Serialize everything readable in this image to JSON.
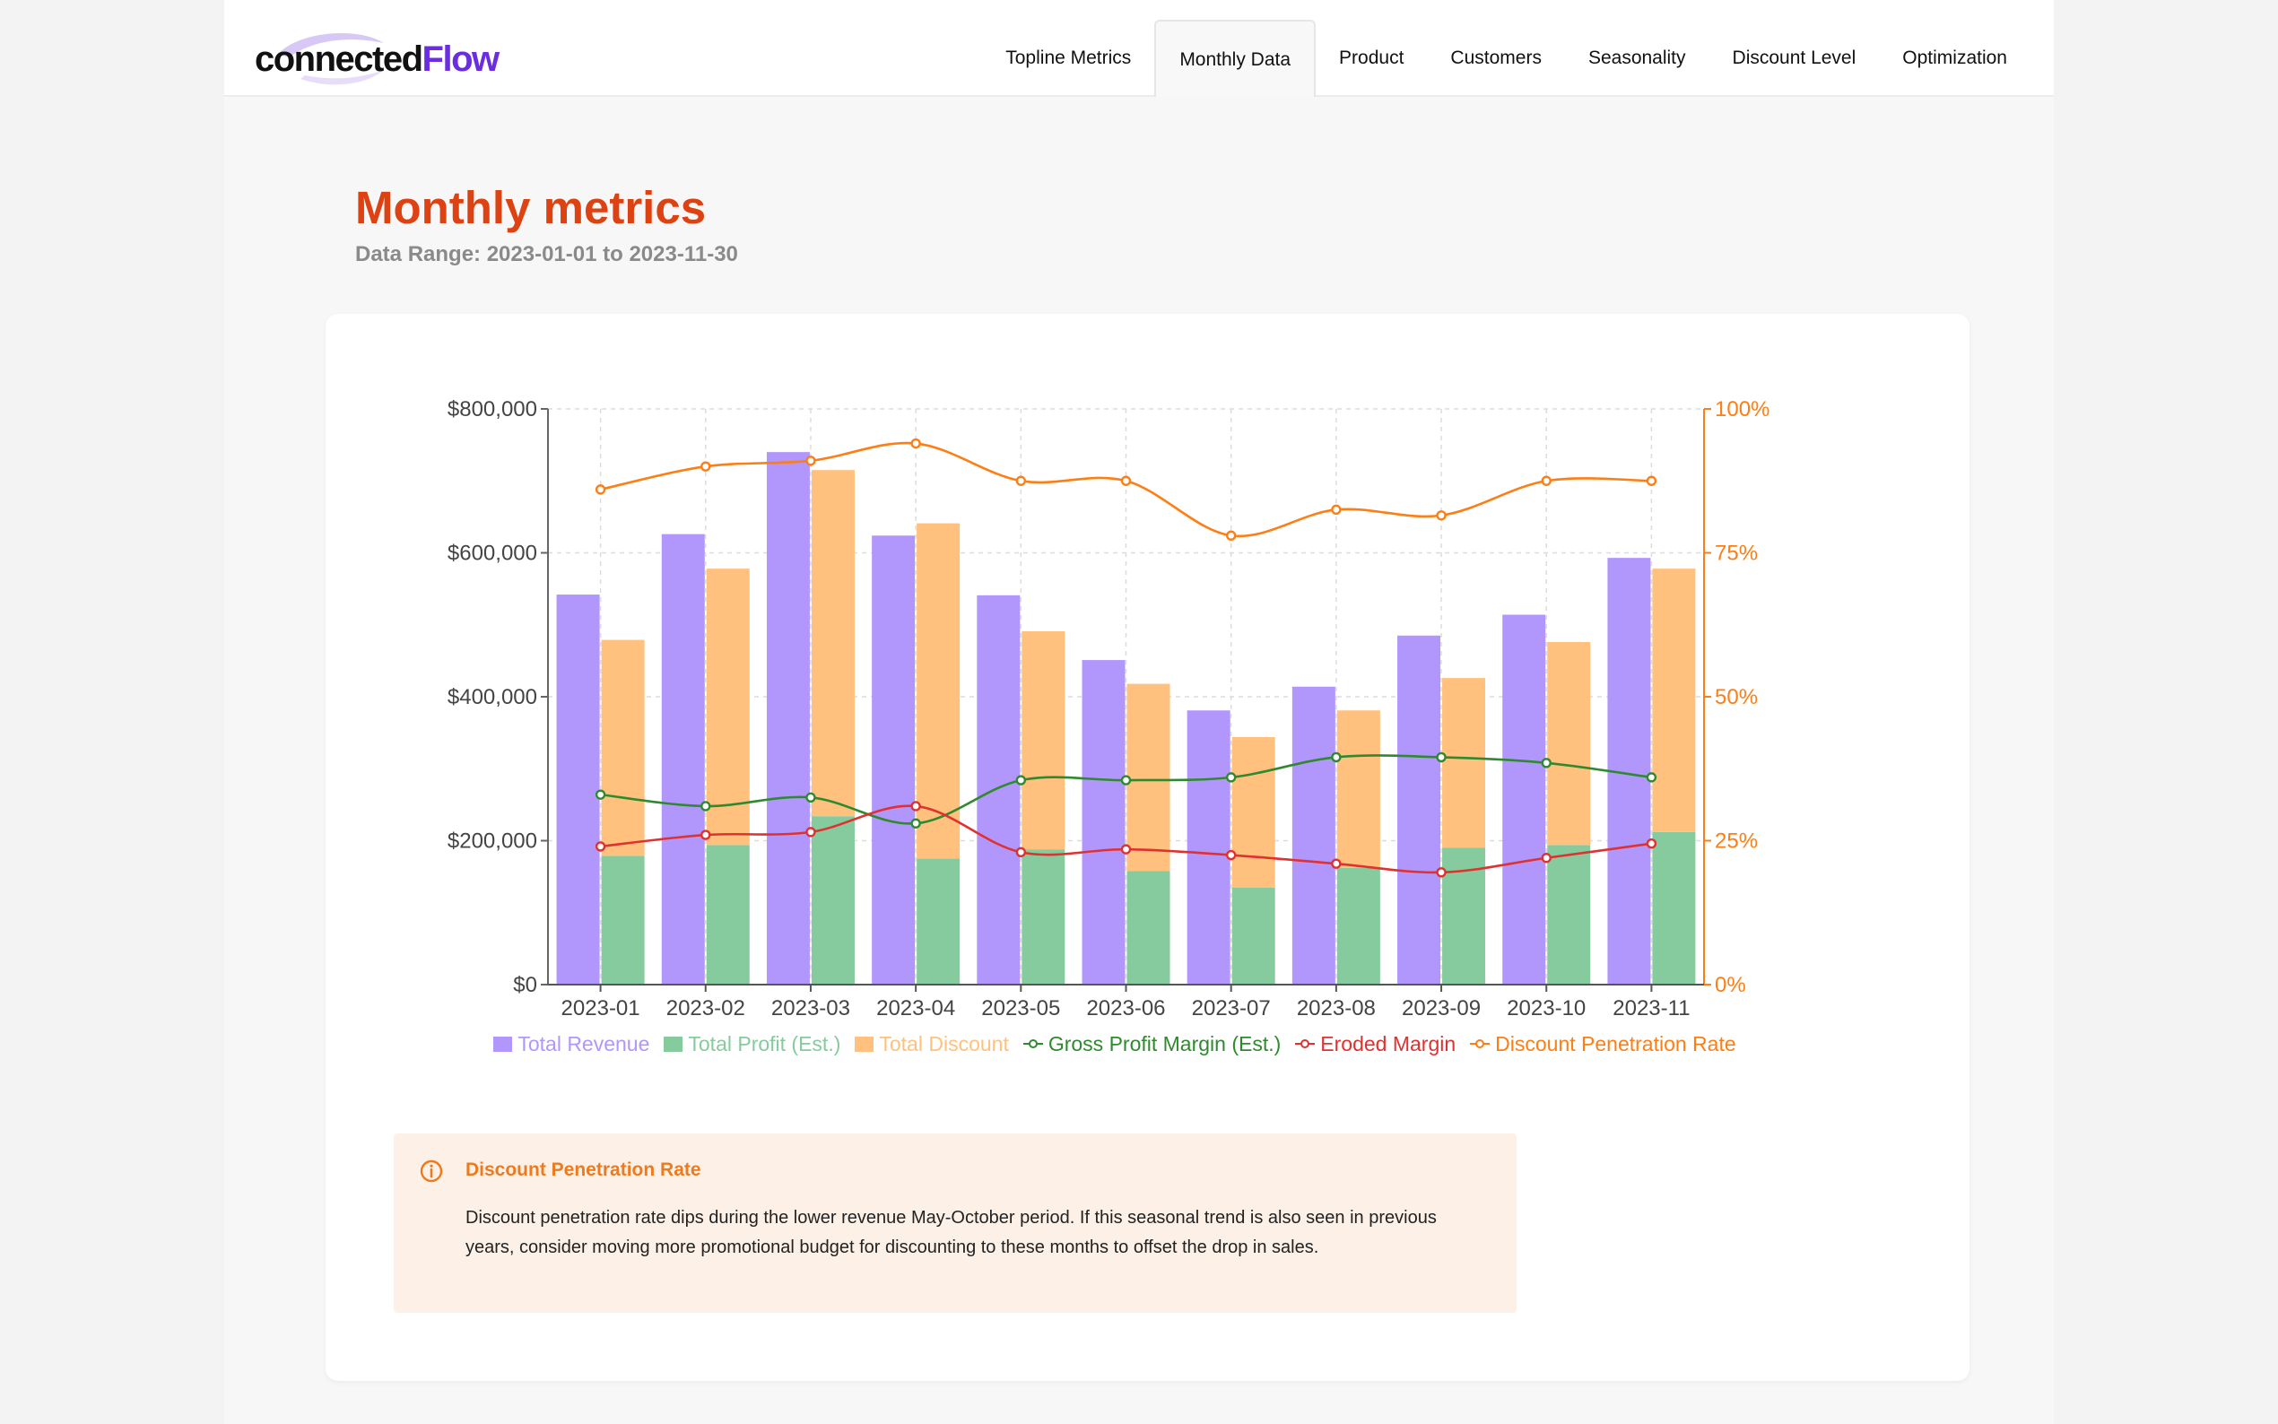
{
  "brand": {
    "logo_part1": "connected",
    "logo_part2": "Flow"
  },
  "nav": {
    "tabs": [
      {
        "label": "Topline Metrics",
        "active": false
      },
      {
        "label": "Monthly Data",
        "active": true
      },
      {
        "label": "Product",
        "active": false
      },
      {
        "label": "Customers",
        "active": false
      },
      {
        "label": "Seasonality",
        "active": false
      },
      {
        "label": "Discount Level",
        "active": false
      },
      {
        "label": "Optimization",
        "active": false
      }
    ]
  },
  "page": {
    "title": "Monthly metrics",
    "subtitle": "Data Range: 2023-01-01 to 2023-11-30"
  },
  "colors": {
    "revenue": "#b197fc",
    "profit": "#86cb9e",
    "discount": "#ffc17d",
    "gross_margin": "#2f8a2f",
    "eroded_margin": "#e03131",
    "penetration": "#fd7e14",
    "title": "#dd4212"
  },
  "chart_data": {
    "type": "bar",
    "categories": [
      "2023-01",
      "2023-02",
      "2023-03",
      "2023-04",
      "2023-05",
      "2023-06",
      "2023-07",
      "2023-08",
      "2023-09",
      "2023-10",
      "2023-11"
    ],
    "series": [
      {
        "name": "Total Revenue",
        "type": "bar",
        "axis": "left",
        "values": [
          542000,
          626000,
          740000,
          624000,
          541000,
          451000,
          381000,
          414000,
          485000,
          514000,
          593000
        ]
      },
      {
        "name": "Total Profit (Est.)",
        "type": "bar",
        "axis": "left",
        "stack": "s1",
        "values": [
          179000,
          194000,
          234000,
          175000,
          188000,
          158000,
          135000,
          162000,
          190000,
          194000,
          212000
        ]
      },
      {
        "name": "Total Discount",
        "type": "bar",
        "axis": "left",
        "stack": "s1",
        "values": [
          300000,
          384000,
          481000,
          466000,
          303000,
          260000,
          209000,
          219000,
          236000,
          282000,
          366000
        ]
      },
      {
        "name": "Gross Profit Margin (Est.)",
        "type": "line",
        "axis": "right",
        "values": [
          33,
          31,
          32.5,
          28,
          35.5,
          35.5,
          36,
          39.5,
          39.5,
          38.5,
          36
        ]
      },
      {
        "name": "Eroded Margin",
        "type": "line",
        "axis": "right",
        "values": [
          24,
          26,
          26.5,
          31,
          23,
          23.5,
          22.5,
          21,
          19.5,
          22,
          24.5
        ]
      },
      {
        "name": "Discount Penetration Rate",
        "type": "line",
        "axis": "right",
        "values": [
          86,
          90,
          91,
          94,
          87.5,
          87.5,
          78,
          82.5,
          81.5,
          87.5,
          87.5
        ]
      }
    ],
    "y_left": {
      "min": 0,
      "max": 800000,
      "ticks": [
        "$0",
        "$200,000",
        "$400,000",
        "$600,000",
        "$800,000"
      ]
    },
    "y_right": {
      "min": 0,
      "max": 100,
      "ticks": [
        "0%",
        "25%",
        "50%",
        "75%",
        "100%"
      ]
    },
    "grid": true,
    "legend": "bottom"
  },
  "info_box": {
    "title": "Discount Penetration Rate",
    "body": "Discount penetration rate dips during the lower revenue May-October period. If this seasonal trend is also seen in previous years, consider moving more promotional budget for discounting to these months to offset the drop in sales."
  }
}
